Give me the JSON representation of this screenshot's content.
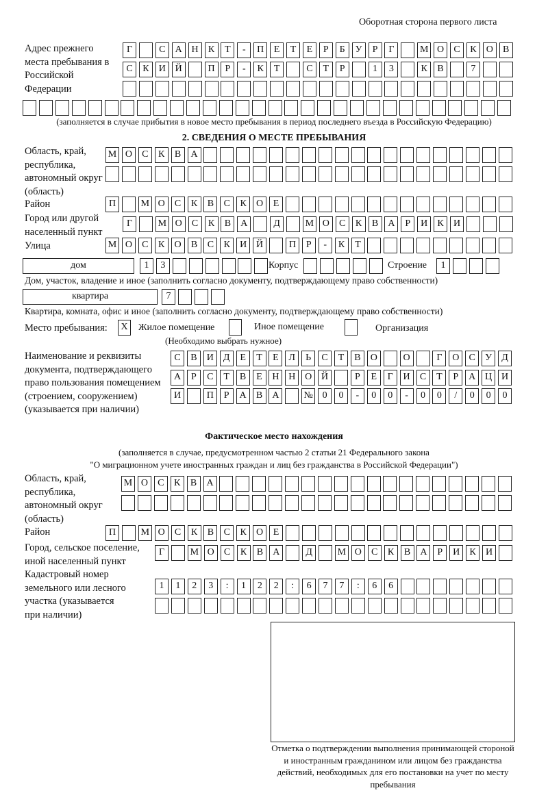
{
  "header": "Оборотная сторона первого листа",
  "prev_address": {
    "label": "Адрес прежнего места пребывания в Российской Федерации",
    "rows": [
      "Г САНКТ-ПЕТЕРБУРГ МОСКОВ",
      "СКИЙ ПР-КТ СТР 13 КВ 7  ",
      "                        ",
      "                              "
    ],
    "note": "(заполняется в случае прибытия в новое место пребывания в период последнего въезда в Российскую Федерацию)"
  },
  "section2": {
    "title": "2. СВЕДЕНИЯ О МЕСТЕ ПРЕБЫВАНИЯ",
    "region_label": "Область, край, республика, автономный округ (область)",
    "region_rows": [
      "МОСКВА                   ",
      "                         "
    ],
    "district_label": "Район",
    "district": "П МОСКВСКОЕ              ",
    "city_label": "Город или другой населенный пункт",
    "city": "Г МОСКВА Д МОСКВАРИКИ   ",
    "street_label": "Улица",
    "street": "МОСКОВСКИЙ ПР-КТ         ",
    "house_type": "дом",
    "house": "13      ",
    "korpus_label": "Корпус",
    "korpus": "     ",
    "building_label": "Строение",
    "building": "1   ",
    "house_note": "Дом, участок, владение и иное (заполнить согласно документу, подтверждающему право собственности)",
    "flat_type": "квартира",
    "flat": "7   ",
    "flat_note": "Квартира, комната, офис и иное (заполнить согласно документу, подтверждающему право собственности)",
    "stay_label": "Место пребывания:",
    "options": [
      {
        "mark": "X",
        "label": "Жилое помещение"
      },
      {
        "mark": "",
        "label": "Иное помещение"
      },
      {
        "mark": "",
        "label": "Организация"
      }
    ],
    "choose_note": "(Необходимо выбрать нужное)",
    "doc_label": "Наименование и реквизиты документа, подтверждающего право пользования помещением (строением, сооружением) (указывается при наличии)",
    "doc_rows": [
      "СВИДЕТЕЛЬСТВО О ГОСУД",
      "АРСТВЕННОЙ РЕГИСТРАЦИ",
      "И ПРАВА №00-00-00/000"
    ]
  },
  "actual": {
    "title": "Фактическое место нахождения",
    "note1": "(заполняется в случае, предусмотренном частью 2 статьи 21 Федерального закона",
    "note2": "\"О миграционном учете иностранных граждан и лиц без гражданства в Российской Федерации\")",
    "region_label": "Область, край, республика, автономный округ (область)",
    "region_rows": [
      "МОСКВА                  ",
      "                        "
    ],
    "district_label": "Район",
    "district": "П МОСКВСКОЕ              ",
    "city_label": "Город, сельское поселение, иной населенный пункт",
    "city": "Г МОСКВА Д МОСКВАРИКИ ",
    "cadastral_label": "Кадастровый номер земельного или лесного участка (указывается при наличии)",
    "cadastral_rows": [
      "1123:122:677:66       ",
      "                      "
    ]
  },
  "stamp_caption": "Отметка о подтверждении выполнения принимающей стороной и иностранным гражданином или лицом без гражданства действий, необходимых для его постановки на учет по месту пребывания"
}
